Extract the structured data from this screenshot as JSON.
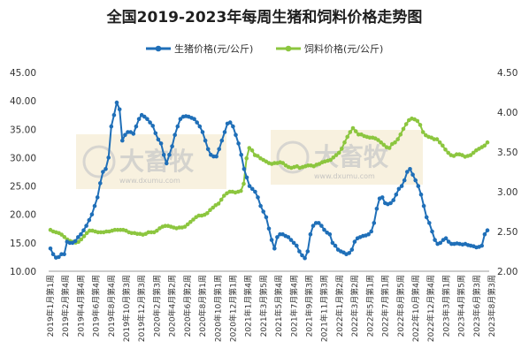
{
  "chart_data": {
    "type": "line",
    "title": "全国2019-2023年每周生猪和饲料价格走势图",
    "xlabel": "",
    "ylabel": "",
    "ylim": [
      10,
      45
    ],
    "y2lim": [
      2,
      4.5
    ],
    "yticks": [
      "10.00",
      "15.00",
      "20.00",
      "25.00",
      "30.00",
      "35.00",
      "40.00",
      "45.00"
    ],
    "y2ticks": [
      "2.00",
      "2.50",
      "3.00",
      "3.50",
      "4.00",
      "4.50"
    ],
    "grid": false,
    "legend_position": "top",
    "x_tick_labels": [
      "2019年1月第1周",
      "2019年2月第4周",
      "2019年4月第4周",
      "2019年6月第4周",
      "2019年8月第4周",
      "2019年10月第3周",
      "2019年12月第3周",
      "2020年2月第3周",
      "2020年4月第2周",
      "2020年6月第2周",
      "2020年8月第1周",
      "2020年10月第1周",
      "2020年12月第1周",
      "2021年1月第4周",
      "2021年3月第5周",
      "2021年5月第4周",
      "2021年7月第4周",
      "2021年9月第3周",
      "2021年11月第3周",
      "2022年1月第2周",
      "2022年3月第2周",
      "2022年5月第1周",
      "2022年7月第1周",
      "2022年8月第5周",
      "2022年10月第4周",
      "2022年12月第4周",
      "2023年3月第1周",
      "2023年4月第5周",
      "2023年6月第3周",
      "2023年8月第3周"
    ],
    "series": [
      {
        "name": "生猪价格(元/公斤)",
        "axis": "left",
        "color": "#1f6fb8",
        "marker": "circle",
        "values": [
          14.0,
          13.0,
          12.4,
          12.5,
          13.0,
          13.0,
          15.2,
          15.0,
          15.0,
          15.3,
          16.0,
          16.5,
          17.2,
          18.0,
          19.0,
          20.0,
          21.5,
          23.0,
          25.5,
          27.5,
          28.0,
          30.0,
          35.5,
          37.5,
          39.7,
          38.5,
          33.0,
          34.0,
          34.5,
          34.5,
          34.2,
          35.5,
          36.8,
          37.5,
          37.2,
          36.8,
          36.2,
          35.6,
          34.3,
          33.2,
          32.5,
          30.5,
          29.0,
          30.5,
          32.0,
          34.0,
          35.5,
          36.8,
          37.2,
          37.3,
          37.2,
          37.0,
          36.8,
          36.2,
          35.5,
          34.5,
          33.0,
          31.5,
          30.5,
          30.2,
          30.2,
          31.5,
          33.0,
          34.5,
          36.0,
          36.2,
          35.5,
          34.0,
          32.5,
          30.5,
          28.0,
          26.5,
          25.0,
          24.5,
          24.0,
          23.0,
          21.5,
          20.5,
          19.5,
          17.5,
          15.5,
          14.0,
          16.0,
          16.5,
          16.5,
          16.2,
          16.0,
          15.5,
          15.0,
          14.5,
          13.5,
          12.8,
          12.3,
          13.5,
          16.5,
          18.0,
          18.5,
          18.5,
          18.0,
          17.3,
          16.8,
          16.5,
          15.0,
          14.5,
          13.8,
          13.5,
          13.3,
          13.0,
          13.2,
          13.8,
          15.2,
          15.8,
          16.0,
          16.2,
          16.3,
          16.5,
          17.0,
          18.5,
          21.0,
          22.8,
          23.0,
          22.0,
          21.8,
          22.0,
          22.5,
          23.5,
          24.5,
          25.0,
          26.0,
          27.5,
          28.0,
          27.0,
          26.0,
          25.0,
          23.5,
          21.5,
          19.5,
          18.5,
          17.0,
          15.5,
          14.8,
          15.0,
          15.5,
          15.8,
          15.2,
          14.8,
          14.8,
          14.9,
          14.8,
          14.7,
          14.8,
          14.6,
          14.5,
          14.4,
          14.2,
          14.3,
          14.5,
          16.5,
          17.2
        ]
      },
      {
        "name": "饲料价格(元/公斤)",
        "axis": "right",
        "color": "#8cc63f",
        "marker": "circle",
        "values": [
          2.52,
          2.5,
          2.49,
          2.48,
          2.46,
          2.43,
          2.4,
          2.38,
          2.37,
          2.36,
          2.37,
          2.4,
          2.44,
          2.48,
          2.51,
          2.51,
          2.5,
          2.49,
          2.49,
          2.49,
          2.5,
          2.5,
          2.51,
          2.52,
          2.52,
          2.52,
          2.52,
          2.51,
          2.49,
          2.48,
          2.48,
          2.47,
          2.47,
          2.46,
          2.47,
          2.49,
          2.49,
          2.49,
          2.51,
          2.54,
          2.56,
          2.57,
          2.57,
          2.56,
          2.55,
          2.54,
          2.55,
          2.55,
          2.56,
          2.59,
          2.62,
          2.65,
          2.68,
          2.7,
          2.7,
          2.71,
          2.73,
          2.77,
          2.8,
          2.83,
          2.85,
          2.9,
          2.95,
          2.98,
          3.0,
          3.0,
          2.99,
          3.0,
          3.01,
          3.1,
          3.42,
          3.55,
          3.52,
          3.46,
          3.45,
          3.42,
          3.4,
          3.38,
          3.36,
          3.35,
          3.36,
          3.36,
          3.37,
          3.36,
          3.33,
          3.31,
          3.3,
          3.31,
          3.32,
          3.3,
          3.31,
          3.32,
          3.33,
          3.33,
          3.32,
          3.34,
          3.35,
          3.37,
          3.38,
          3.39,
          3.4,
          3.43,
          3.46,
          3.49,
          3.54,
          3.62,
          3.69,
          3.75,
          3.8,
          3.76,
          3.72,
          3.72,
          3.7,
          3.69,
          3.68,
          3.68,
          3.67,
          3.65,
          3.62,
          3.59,
          3.56,
          3.55,
          3.6,
          3.62,
          3.66,
          3.72,
          3.79,
          3.85,
          3.9,
          3.92,
          3.91,
          3.89,
          3.84,
          3.75,
          3.71,
          3.69,
          3.68,
          3.66,
          3.66,
          3.62,
          3.58,
          3.53,
          3.49,
          3.46,
          3.45,
          3.47,
          3.47,
          3.46,
          3.44,
          3.45,
          3.46,
          3.49,
          3.52,
          3.54,
          3.56,
          3.58,
          3.62
        ]
      }
    ]
  },
  "watermark": {
    "brand": "大畜牧",
    "url": "www.dxumu.com"
  }
}
